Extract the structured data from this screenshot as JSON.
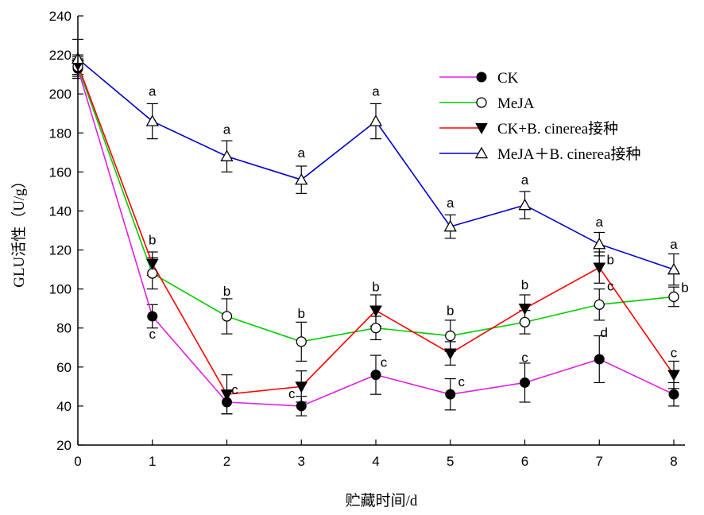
{
  "chart_data": {
    "type": "line",
    "xlabel": "贮藏时间/d",
    "ylabel": "GLU活性（U/g）",
    "x": [
      0,
      1,
      2,
      3,
      4,
      5,
      6,
      7,
      8
    ],
    "xlim": [
      0,
      8
    ],
    "ylim": [
      20,
      240
    ],
    "yticks": [
      20,
      40,
      60,
      80,
      100,
      120,
      140,
      160,
      180,
      200,
      220,
      240
    ],
    "legend_position": "top-right",
    "series": [
      {
        "name": "CK",
        "color": "#e020e0",
        "marker": "filled-circle",
        "values": [
          213,
          86,
          42,
          40,
          56,
          46,
          52,
          64,
          46
        ],
        "errors": [
          5,
          6,
          6,
          5,
          10,
          8,
          10,
          12,
          6
        ],
        "labels": [
          "",
          "c",
          "c",
          "c",
          "c",
          "c",
          "c",
          "d",
          ""
        ]
      },
      {
        "name": "MeJA",
        "color": "#00cc00",
        "marker": "open-circle",
        "values": [
          214,
          108,
          86,
          73,
          80,
          76,
          83,
          92,
          96
        ],
        "errors": [
          5,
          8,
          9,
          10,
          6,
          8,
          6,
          8,
          5
        ],
        "labels": [
          "",
          "",
          "b",
          "b",
          "",
          "b",
          "",
          "c",
          "b"
        ]
      },
      {
        "name": "CK+B. cinerea接种",
        "color": "#ff0000",
        "marker": "filled-triangle-down",
        "values": [
          215,
          113,
          46,
          50,
          89,
          67,
          90,
          111,
          56
        ],
        "errors": [
          5,
          6,
          10,
          8,
          8,
          6,
          7,
          8,
          7
        ],
        "labels": [
          "",
          "b",
          "",
          "",
          "b",
          "",
          "b",
          "b",
          "c"
        ]
      },
      {
        "name": "MeJA＋B. cinerea接种",
        "color": "#0000cc",
        "marker": "open-triangle-up",
        "values": [
          218,
          186,
          168,
          156,
          186,
          132,
          143,
          123,
          110
        ],
        "errors": [
          10,
          9,
          8,
          7,
          9,
          6,
          7,
          6,
          8
        ],
        "labels": [
          "",
          "a",
          "a",
          "a",
          "a",
          "a",
          "a",
          "a",
          "a"
        ]
      }
    ]
  }
}
